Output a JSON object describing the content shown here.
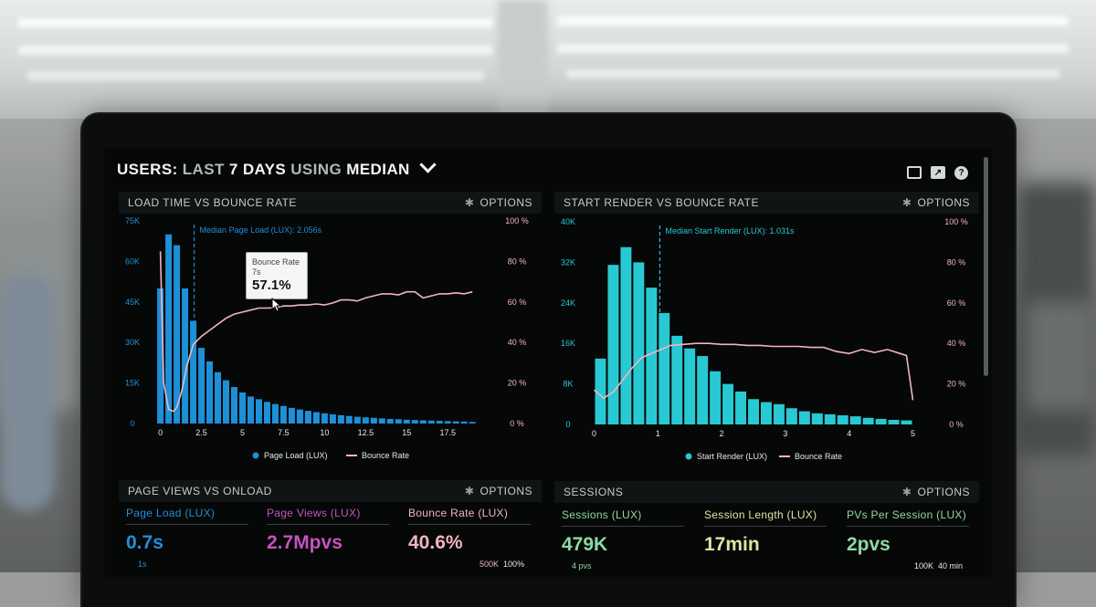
{
  "header": {
    "part1": "USERS:",
    "part2": "LAST",
    "part3": "7 DAYS",
    "part4": "USING",
    "part5": "MEDIAN"
  },
  "icons": [
    "monitor-icon",
    "share-icon",
    "help-icon"
  ],
  "panels": {
    "load": {
      "title": "LOAD TIME VS BOUNCE RATE",
      "options": "OPTIONS"
    },
    "render": {
      "title": "START RENDER VS BOUNCE RATE",
      "options": "OPTIONS"
    },
    "pageviews": {
      "title": "PAGE VIEWS VS ONLOAD",
      "options": "OPTIONS"
    },
    "sessions": {
      "title": "SESSIONS",
      "options": "OPTIONS"
    }
  },
  "tooltip": {
    "title": "Bounce Rate",
    "sub": "7s",
    "value": "57.1%"
  },
  "stats": {
    "page_load": {
      "label": "Page Load (LUX)",
      "value": "0.7s",
      "sub": "1s"
    },
    "page_views": {
      "label": "Page Views (LUX)",
      "value": "2.7Mpvs"
    },
    "bounce": {
      "label": "Bounce Rate (LUX)",
      "value": "40.6%",
      "sub_a": "500K",
      "sub_b": "100%"
    },
    "sessions": {
      "label": "Sessions (LUX)",
      "value": "479K",
      "sub": "4 pvs"
    },
    "session_length": {
      "label": "Session Length (LUX)",
      "value": "17min"
    },
    "pvs_per_session": {
      "label": "PVs Per Session (LUX)",
      "value": "2pvs",
      "sub_a": "100K",
      "sub_b": "40 min"
    }
  },
  "colors": {
    "blue": "#1e90d8",
    "cyan": "#28c9d3",
    "pink": "#f0b5bf",
    "purple": "#c353bf",
    "green": "#8fd9a2"
  },
  "chart_data": [
    {
      "type": "bar",
      "title": "LOAD TIME VS BOUNCE RATE",
      "annotation": "Median Page Load (LUX): 2.056s",
      "median": 2.056,
      "x_ticks": [
        "0",
        "2.5",
        "5",
        "7.5",
        "10",
        "12.5",
        "15",
        "17.5"
      ],
      "xlim": [
        -0.2,
        19.6
      ],
      "y_left_ticks": [
        "0",
        "15K",
        "30K",
        "45K",
        "60K",
        "75K"
      ],
      "ylim_left": [
        0,
        75000
      ],
      "y_right_ticks": [
        "0 %",
        "20 %",
        "40 %",
        "60 %",
        "80 %",
        "100 %"
      ],
      "ylim_right": [
        0,
        100
      ],
      "legend": [
        "Page Load (LUX)",
        "Bounce Rate"
      ],
      "series": [
        {
          "name": "Page Load (LUX)",
          "x": [
            0,
            0.5,
            1,
            1.5,
            2,
            2.5,
            3,
            3.5,
            4,
            4.5,
            5,
            5.5,
            6,
            6.5,
            7,
            7.5,
            8,
            8.5,
            9,
            9.5,
            10,
            10.5,
            11,
            11.5,
            12,
            12.5,
            13,
            13.5,
            14,
            14.5,
            15,
            15.5,
            16,
            16.5,
            17,
            17.5,
            18,
            18.5,
            19
          ],
          "values": [
            50000,
            70000,
            66000,
            50000,
            38000,
            28000,
            23000,
            19000,
            16000,
            13500,
            11500,
            10000,
            9000,
            8000,
            7200,
            6500,
            5800,
            5200,
            4700,
            4200,
            3800,
            3400,
            3100,
            2800,
            2500,
            2300,
            2100,
            1900,
            1700,
            1600,
            1400,
            1300,
            1200,
            1100,
            1000,
            900,
            800,
            700,
            600
          ]
        },
        {
          "name": "Bounce Rate",
          "x": [
            0,
            0.2,
            0.5,
            0.8,
            1,
            1.3,
            1.6,
            2,
            2.5,
            3,
            3.5,
            4,
            4.5,
            5,
            5.5,
            6,
            6.5,
            7,
            7.5,
            8,
            8.5,
            9,
            9.5,
            10,
            10.5,
            11,
            11.5,
            12,
            12.5,
            13,
            13.5,
            14,
            14.5,
            15,
            15.5,
            16,
            16.5,
            17,
            17.5,
            18,
            18.5,
            19
          ],
          "values": [
            85,
            20,
            7,
            6,
            8,
            16,
            28,
            39,
            43,
            46,
            49,
            52,
            54,
            55,
            56,
            57,
            57,
            57.1,
            58,
            58,
            58.5,
            58.5,
            59,
            58.5,
            59.5,
            61,
            61,
            60.5,
            62,
            63,
            64,
            64,
            63.5,
            65,
            65,
            62,
            63,
            64,
            64,
            64.5,
            64,
            65
          ]
        }
      ]
    },
    {
      "type": "bar",
      "title": "START RENDER VS BOUNCE RATE",
      "annotation": "Median Start Render (LUX): 1.031s",
      "median": 1.031,
      "x_ticks": [
        "0",
        "1",
        "2",
        "3",
        "4",
        "5"
      ],
      "xlim": [
        -0.05,
        5.15
      ],
      "y_left_ticks": [
        "0",
        "8K",
        "16K",
        "24K",
        "32K",
        "40K"
      ],
      "ylim_left": [
        0,
        40000
      ],
      "y_right_ticks": [
        "0 %",
        "20 %",
        "40 %",
        "60 %",
        "80 %",
        "100 %"
      ],
      "ylim_right": [
        0,
        100
      ],
      "legend": [
        "Start Render (LUX)",
        "Bounce Rate"
      ],
      "series": [
        {
          "name": "Start Render (LUX)",
          "x": [
            0.1,
            0.3,
            0.5,
            0.7,
            0.9,
            1.1,
            1.3,
            1.5,
            1.7,
            1.9,
            2.1,
            2.3,
            2.5,
            2.7,
            2.9,
            3.1,
            3.3,
            3.5,
            3.7,
            3.9,
            4.1,
            4.3,
            4.5,
            4.7,
            4.9
          ],
          "values": [
            13000,
            31500,
            35000,
            32000,
            27000,
            22000,
            17500,
            15000,
            13500,
            10500,
            8000,
            6500,
            5000,
            4400,
            4000,
            3200,
            2600,
            2200,
            2000,
            1800,
            1600,
            1300,
            1100,
            900,
            800
          ]
        },
        {
          "name": "Bounce Rate",
          "x": [
            0,
            0.15,
            0.3,
            0.45,
            0.6,
            0.75,
            0.9,
            1.05,
            1.2,
            1.4,
            1.6,
            1.8,
            2,
            2.2,
            2.4,
            2.6,
            2.8,
            3,
            3.2,
            3.4,
            3.6,
            3.8,
            4,
            4.2,
            4.4,
            4.6,
            4.8,
            4.9,
            5
          ],
          "values": [
            17,
            13,
            16,
            22,
            28,
            33,
            35,
            37,
            39,
            39.5,
            40,
            40,
            39.5,
            39.5,
            39,
            39,
            38.5,
            38.5,
            38.5,
            38,
            38,
            36,
            35,
            37,
            35.5,
            37,
            35,
            34,
            12
          ]
        }
      ]
    }
  ]
}
